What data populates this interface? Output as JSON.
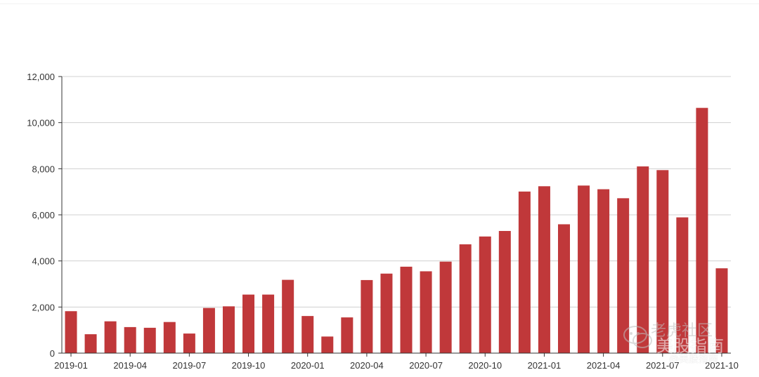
{
  "chart_data": {
    "type": "bar",
    "title": "",
    "xlabel": "",
    "ylabel": "",
    "ylim": [
      0,
      12000
    ],
    "yticks": [
      "0",
      "2,000",
      "4,000",
      "6,000",
      "8,000",
      "10,000",
      "12,000"
    ],
    "ytick_values": [
      0,
      2000,
      4000,
      6000,
      8000,
      10000,
      12000
    ],
    "grid": true,
    "bar_color": "#c0383a",
    "categories": [
      "2019-01",
      "2019-02",
      "2019-03",
      "2019-04",
      "2019-05",
      "2019-06",
      "2019-07",
      "2019-08",
      "2019-09",
      "2019-10",
      "2019-11",
      "2019-12",
      "2020-01",
      "2020-02",
      "2020-03",
      "2020-04",
      "2020-05",
      "2020-06",
      "2020-07",
      "2020-08",
      "2020-09",
      "2020-10",
      "2020-11",
      "2020-12",
      "2021-01",
      "2021-02",
      "2021-03",
      "2021-04",
      "2021-05",
      "2021-06",
      "2021-07",
      "2021-08",
      "2021-09",
      "2021-10"
    ],
    "xtick_labels": [
      "2019-01",
      "2019-04",
      "2019-07",
      "2019-10",
      "2020-01",
      "2020-04",
      "2020-07",
      "2020-10",
      "2021-01",
      "2021-04",
      "2021-07",
      "2021-10"
    ],
    "values": [
      1820,
      820,
      1380,
      1130,
      1100,
      1350,
      850,
      1960,
      2030,
      2540,
      2540,
      3180,
      1610,
      720,
      1550,
      3170,
      3450,
      3750,
      3550,
      3970,
      4720,
      5060,
      5300,
      7010,
      7240,
      5590,
      7270,
      7110,
      6720,
      8100,
      7940,
      5890,
      10640,
      3680
    ]
  },
  "watermark": {
    "line1": "老虎社区",
    "line2": "美股指南",
    "line3": "@美股指南"
  }
}
